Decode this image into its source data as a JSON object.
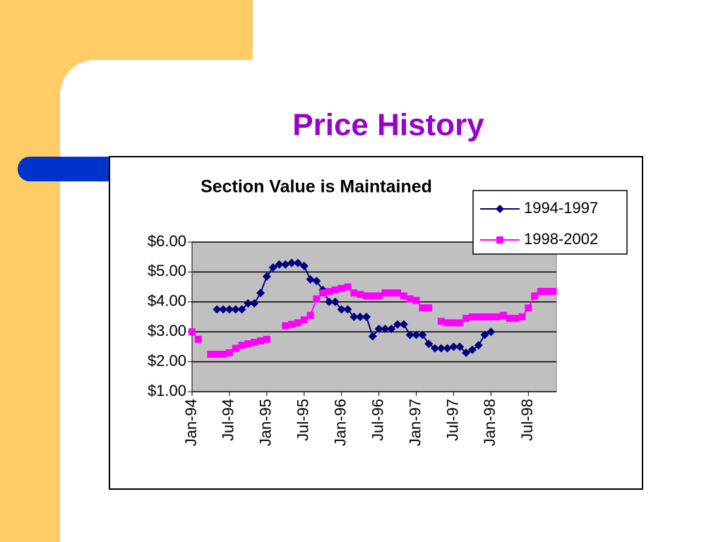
{
  "slide": {
    "title": "Price History"
  },
  "chart_data": {
    "type": "line",
    "title": "Section Value is Maintained",
    "categories": [
      "Jan-94",
      null,
      null,
      null,
      null,
      null,
      "Jul-94",
      null,
      null,
      null,
      null,
      null,
      "Jan-95",
      null,
      null,
      null,
      null,
      null,
      "Jul-95",
      null,
      null,
      null,
      null,
      null,
      "Jan-96",
      null,
      null,
      null,
      null,
      null,
      "Jul-96",
      null,
      null,
      null,
      null,
      null,
      "Jan-97",
      null,
      null,
      null,
      null,
      null,
      "Jul-97",
      null,
      null,
      null,
      null,
      null,
      "Jan-98",
      null,
      null,
      null,
      null,
      null,
      "Jul-98",
      null,
      null,
      null,
      null
    ],
    "series": [
      {
        "name": "1994-1997",
        "color": "#000080",
        "marker": "diamond",
        "values": [
          3.0,
          null,
          null,
          null,
          3.75,
          3.75,
          3.75,
          3.75,
          3.75,
          3.95,
          3.95,
          4.3,
          4.85,
          5.15,
          5.25,
          5.25,
          5.3,
          5.3,
          5.2,
          4.75,
          4.7,
          4.4,
          4.0,
          4.0,
          3.75,
          3.75,
          3.5,
          3.5,
          3.5,
          2.85,
          3.1,
          3.1,
          3.1,
          3.25,
          3.25,
          2.9,
          2.9,
          2.9,
          2.6,
          2.45,
          2.45,
          2.45,
          2.5,
          2.5,
          2.3,
          2.4,
          2.55,
          2.9,
          3.0,
          null,
          null,
          null,
          null,
          null,
          null,
          null,
          null,
          null,
          null
        ]
      },
      {
        "name": "1998-2002",
        "color": "#ff00ff",
        "marker": "square",
        "values": [
          3.0,
          2.75,
          null,
          2.25,
          2.25,
          2.25,
          2.3,
          2.45,
          2.55,
          2.6,
          2.65,
          2.7,
          2.75,
          null,
          null,
          3.2,
          3.25,
          3.3,
          3.4,
          3.55,
          4.1,
          4.3,
          4.35,
          4.4,
          4.45,
          4.5,
          4.3,
          4.25,
          4.2,
          4.2,
          4.2,
          4.3,
          4.3,
          4.3,
          4.2,
          4.1,
          4.05,
          3.8,
          3.8,
          null,
          3.35,
          3.3,
          3.3,
          3.3,
          3.45,
          3.5,
          3.5,
          3.5,
          3.5,
          3.5,
          3.55,
          3.45,
          3.45,
          3.5,
          3.8,
          4.2,
          4.35,
          4.35,
          4.35
        ]
      }
    ],
    "ylim": [
      1,
      6
    ],
    "yticks": [
      {
        "value": 1,
        "label": "$1.00"
      },
      {
        "value": 2,
        "label": "$2.00"
      },
      {
        "value": 3,
        "label": "$3.00"
      },
      {
        "value": 4,
        "label": "$4.00"
      },
      {
        "value": 5,
        "label": "$5.00"
      },
      {
        "value": 6,
        "label": "$6.00"
      }
    ],
    "grid": true,
    "legend": "upper right",
    "plot_background": "#c0c0c0"
  }
}
